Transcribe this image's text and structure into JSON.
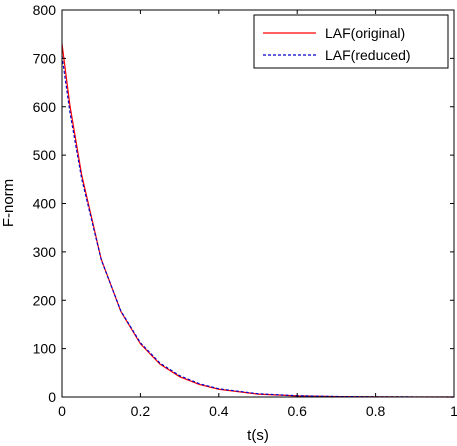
{
  "chart_data": {
    "type": "line",
    "title": "",
    "xlabel": "t(s)",
    "ylabel": "F-norm",
    "xlim": [
      0,
      1
    ],
    "ylim": [
      0,
      800
    ],
    "xticks": [
      0,
      0.2,
      0.4,
      0.6,
      0.8,
      1
    ],
    "xtick_labels": [
      "0",
      "0.2",
      "0.4",
      "0.6",
      "0.8",
      "1"
    ],
    "yticks": [
      0,
      100,
      200,
      300,
      400,
      500,
      600,
      700,
      800
    ],
    "ytick_labels": [
      "0",
      "100",
      "200",
      "300",
      "400",
      "500",
      "600",
      "700",
      "800"
    ],
    "grid": false,
    "legend_position": "top-right",
    "series": [
      {
        "name": "LAF(original)",
        "color": "#ff0000",
        "line_style": "solid",
        "x": [
          0,
          0.02,
          0.05,
          0.1,
          0.15,
          0.2,
          0.25,
          0.3,
          0.35,
          0.4,
          0.5,
          0.6,
          0.7,
          0.8,
          0.9,
          1.0
        ],
        "y": [
          730,
          604,
          460,
          285,
          177,
          110,
          68,
          42,
          26,
          16,
          6,
          2.4,
          0.9,
          0.4,
          0.15,
          0.05
        ]
      },
      {
        "name": "LAF(reduced)",
        "color": "#0000cc",
        "line_style": "dashed",
        "x": [
          0,
          0.02,
          0.05,
          0.1,
          0.15,
          0.2,
          0.25,
          0.3,
          0.35,
          0.4,
          0.5,
          0.6,
          0.7,
          0.8,
          0.9,
          1.0
        ],
        "y": [
          705,
          590,
          452,
          284,
          178,
          112,
          70,
          44,
          27.5,
          17,
          6.7,
          2.6,
          1.0,
          0.4,
          0.16,
          0.06
        ]
      }
    ]
  }
}
